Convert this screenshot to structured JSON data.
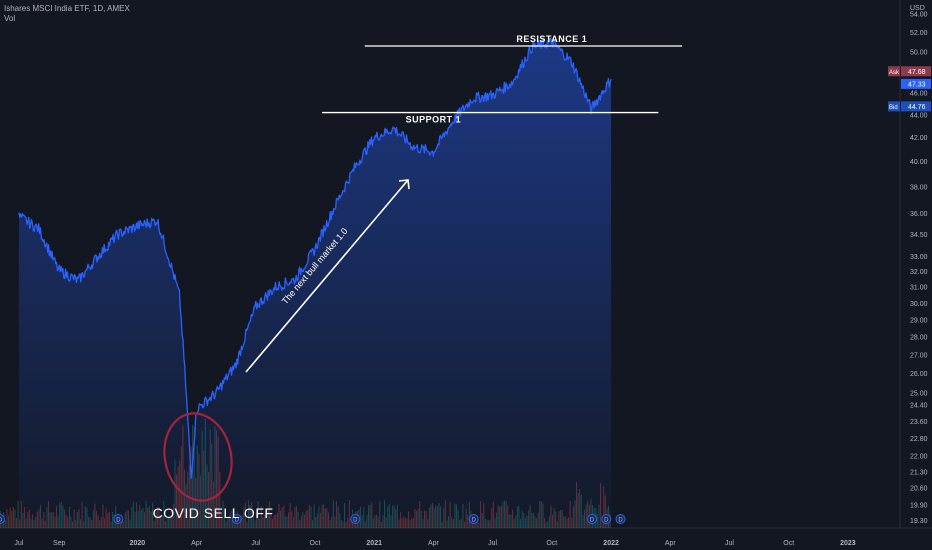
{
  "header": {
    "symbol": "Ishares MSCI India ETF, 1D, AMEX",
    "volume_label": "Vol"
  },
  "price_axis": {
    "currency": "USD",
    "labels": [
      "54.00",
      "52.00",
      "50.00",
      "48.00",
      "46.00",
      "44.00",
      "42.00",
      "40.00",
      "38.00",
      "36.00",
      "34.50",
      "33.00",
      "32.00",
      "31.00",
      "30.00",
      "29.00",
      "28.00",
      "27.00",
      "26.00",
      "25.00",
      "24.40",
      "23.60",
      "22.80",
      "22.00",
      "21.30",
      "20.60",
      "19.90",
      "19.30"
    ],
    "ask": {
      "label": "Ask",
      "value": "47.68",
      "price": 47.68
    },
    "last": {
      "value": "47.33",
      "price": 47.33
    },
    "bid": {
      "label": "Bid",
      "value": "44.76",
      "price": 44.76
    }
  },
  "time_axis": {
    "labels": [
      "Jul",
      "Sep",
      "2020",
      "Apr",
      "Jul",
      "Oct",
      "2021",
      "Apr",
      "Jul",
      "Oct",
      "2022",
      "Apr",
      "Jul",
      "Oct",
      "2023"
    ]
  },
  "annotations": {
    "resistance": "RESISTANCE 1",
    "support": "SUPPORT 1",
    "arrow_text": "The next bull market 1.0",
    "covid": "COVID SELL OFF",
    "dividend_marker": "D"
  },
  "colors": {
    "background": "#131722",
    "line": "#2962ff",
    "ask_box": "#8f3a4b",
    "last_box": "#2962ff",
    "bid_box": "#1e4fbf",
    "circle": "#a3243d",
    "vol_up": "#26a69a",
    "vol_down": "#ef5350"
  },
  "chart_data": {
    "type": "line",
    "title": "Ishares MSCI India ETF, 1D, AMEX",
    "ylabel": "USD",
    "yscale": "log",
    "ylim": [
      19.0,
      55.0
    ],
    "x": [
      "2019-07",
      "2019-08",
      "2019-09",
      "2019-10",
      "2019-11",
      "2019-12",
      "2020-01",
      "2020-02",
      "2020-03-05",
      "2020-03-23",
      "2020-04",
      "2020-05",
      "2020-06",
      "2020-07",
      "2020-08",
      "2020-09",
      "2020-10",
      "2020-11",
      "2020-12",
      "2021-01",
      "2021-02",
      "2021-03",
      "2021-04",
      "2021-05",
      "2021-06",
      "2021-07",
      "2021-08",
      "2021-09",
      "2021-10",
      "2021-11",
      "2021-12",
      "2022-01"
    ],
    "series": [
      {
        "values": [
          35.8,
          34.9,
          32.1,
          31.4,
          33.0,
          34.5,
          35.1,
          35.5,
          30.5,
          21.0,
          24.2,
          25.0,
          26.5,
          29.8,
          31.0,
          31.5,
          33.5,
          36.5,
          39.5,
          42.0,
          42.8,
          41.2,
          40.8,
          43.5,
          45.5,
          45.8,
          47.0,
          50.5,
          51.0,
          49.0,
          44.5,
          47.3
        ]
      }
    ],
    "levels": [
      {
        "name": "RESISTANCE 1",
        "value": 50.6
      },
      {
        "name": "SUPPORT 1",
        "value": 44.2
      }
    ],
    "dividend_markers": [
      "2019-06",
      "2019-12",
      "2020-06",
      "2020-12",
      "2021-06",
      "2021-12",
      "2021-12",
      "2022-01"
    ]
  }
}
